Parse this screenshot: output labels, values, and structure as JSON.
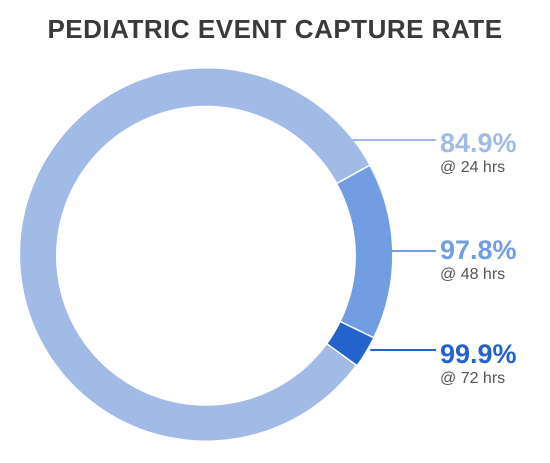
{
  "title": "PEDIATRIC EVENT CAPTURE RATE",
  "chart_data": {
    "type": "pie",
    "style": "donut",
    "title": "PEDIATRIC EVENT CAPTURE RATE",
    "series": [
      {
        "label": "84.9%",
        "value": 84.9,
        "sublabel": "@ 24 hrs",
        "color": "#a2bbe6"
      },
      {
        "label": "97.8%",
        "value": 97.8,
        "sublabel": "@ 48 hrs",
        "color": "#739de2"
      },
      {
        "label": "99.9%",
        "value": 99.9,
        "sublabel": "@ 72 hrs",
        "color": "#2563cc"
      }
    ]
  }
}
